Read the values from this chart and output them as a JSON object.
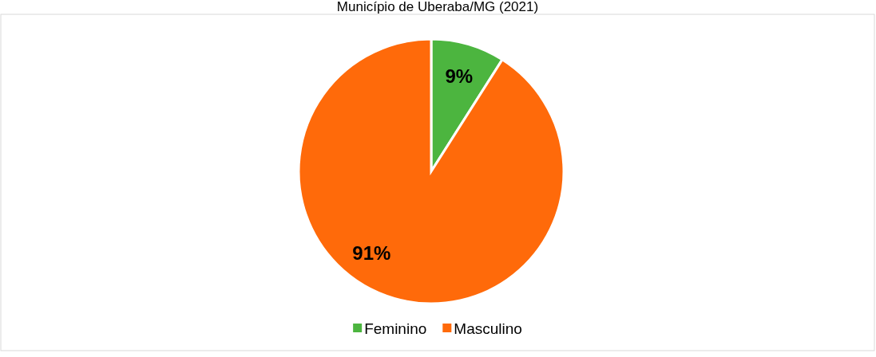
{
  "chart_data": {
    "type": "pie",
    "title": "Município de Uberaba/MG (2021)",
    "categories": [
      "Feminino",
      "Masculino"
    ],
    "values": [
      9,
      91
    ],
    "colors": [
      "#4cb53f",
      "#ff6a0a"
    ],
    "value_labels": [
      "9%",
      "91%"
    ],
    "legend": "bottom"
  }
}
